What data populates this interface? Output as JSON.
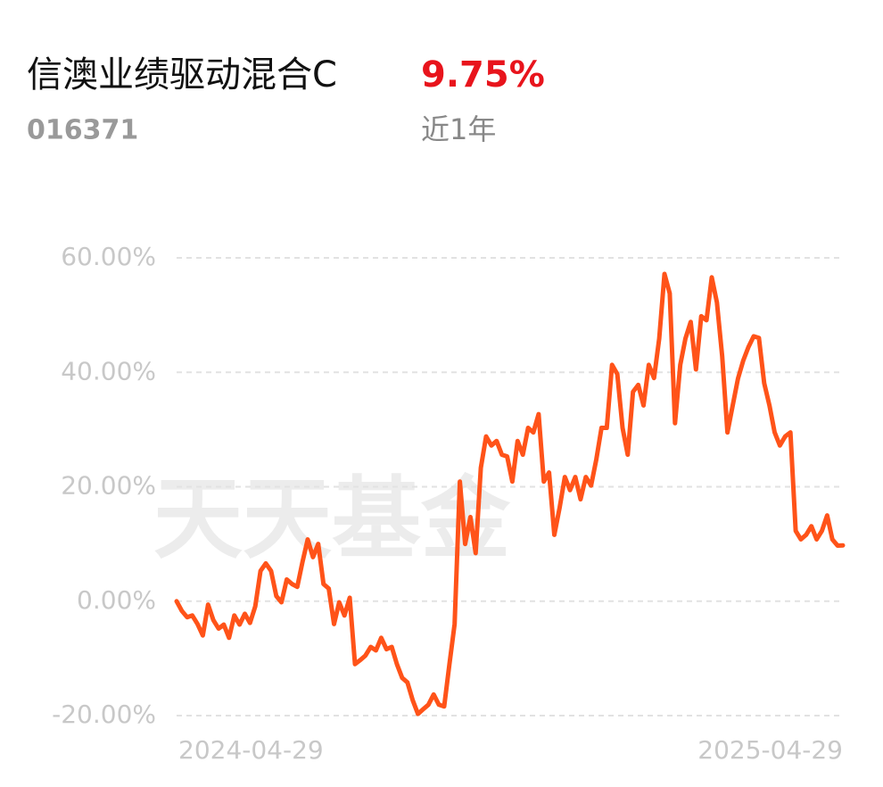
{
  "fund": {
    "name": "信澳业绩驱动混合C",
    "code": "016371",
    "return": "9.75%",
    "period": "近1年"
  },
  "watermark": "天天基金",
  "chart_data": {
    "type": "line",
    "categories": [
      "2024-04-29",
      null,
      null,
      null,
      null,
      null,
      null,
      null,
      null,
      null,
      null,
      null,
      null,
      null,
      null,
      null,
      null,
      null,
      null,
      null,
      null,
      null,
      null,
      null,
      null,
      null,
      null,
      null,
      null,
      null,
      null,
      null,
      null,
      null,
      null,
      null,
      null,
      null,
      null,
      null,
      null,
      null,
      null,
      null,
      null,
      null,
      null,
      null,
      null,
      null,
      null,
      null,
      null,
      null,
      null,
      null,
      null,
      null,
      null,
      null,
      null,
      null,
      null,
      null,
      null,
      null,
      null,
      null,
      null,
      null,
      null,
      null,
      null,
      null,
      null,
      null,
      null,
      null,
      null,
      null,
      null,
      null,
      null,
      null,
      null,
      null,
      null,
      null,
      null,
      null,
      null,
      null,
      null,
      null,
      null,
      null,
      null,
      null,
      null,
      null,
      null,
      null,
      null,
      null,
      null,
      null,
      null,
      null,
      null,
      null,
      null,
      null,
      null,
      null,
      null,
      null,
      null,
      null,
      null,
      null,
      null,
      null,
      null,
      null,
      null,
      null,
      null,
      "2025-04-29"
    ],
    "values": [
      0,
      -1.7,
      -2.8,
      -2.5,
      -4,
      -6,
      -0.6,
      -3.3,
      -4.8,
      -4.1,
      -6.4,
      -2.5,
      -4.1,
      -2.2,
      -3.8,
      -0.9,
      5.3,
      6.6,
      5.3,
      0.9,
      -0.2,
      3.8,
      3,
      2.5,
      6.9,
      10.8,
      7.7,
      10,
      3,
      2.2,
      -4,
      -0.2,
      -2.5,
      0.6,
      -11,
      -10.3,
      -9.5,
      -8,
      -8.6,
      -6.4,
      -8.4,
      -8,
      -11,
      -13.4,
      -14.2,
      -17.3,
      -19.7,
      -18.9,
      -18.1,
      -16.3,
      -18.1,
      -18.4,
      -11,
      -4,
      20.9,
      10,
      14.7,
      8.4,
      23.3,
      28.8,
      27.2,
      28,
      25.6,
      25.3,
      20.9,
      28,
      25.6,
      30.3,
      29.5,
      32.7,
      20.9,
      22.5,
      11.6,
      16.3,
      21.7,
      19.4,
      21.7,
      17.8,
      21.7,
      20.2,
      24.8,
      30.3,
      30.3,
      41.3,
      39.7,
      30.3,
      25.6,
      36.6,
      37.8,
      34.2,
      41.3,
      39,
      45.9,
      57.2,
      53.8,
      31.1,
      41.3,
      45.9,
      48.8,
      40.5,
      49.8,
      49.1,
      56.6,
      52.2,
      42.8,
      29.5,
      34.2,
      38.9,
      42,
      44.4,
      46.3,
      46,
      38.1,
      34.2,
      29.5,
      27.2,
      28.8,
      29.5,
      12.3,
      10.8,
      11.6,
      13.1,
      10.8,
      12.3,
      15,
      10.8,
      9.7,
      9.75
    ],
    "color": "#ff5319",
    "ylim": [
      -20,
      60
    ],
    "yticks": [
      {
        "value": -20,
        "label": "-20.00%"
      },
      {
        "value": 0,
        "label": "0.00%"
      },
      {
        "value": 20,
        "label": "20.00%"
      },
      {
        "value": 40,
        "label": "40.00%"
      },
      {
        "value": 60,
        "label": "60.00%"
      }
    ],
    "grid": true
  }
}
